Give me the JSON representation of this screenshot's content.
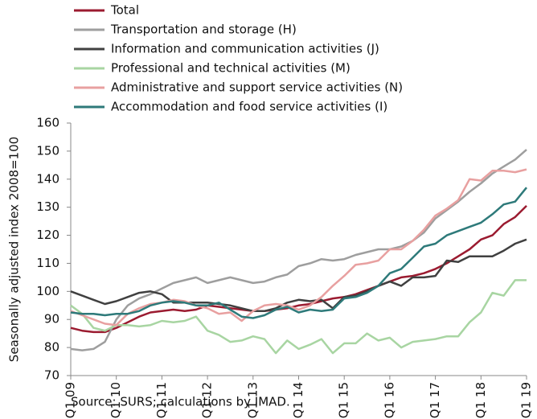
{
  "chart_data": {
    "type": "line",
    "y_label": "Seasonally adjusted index 2008=100",
    "source": "Source:  SURS; calculations by IMAD.",
    "categories": [
      "Q1 09",
      null,
      null,
      null,
      "Q1 10",
      null,
      null,
      null,
      "Q1 11",
      null,
      null,
      null,
      "Q1 12",
      null,
      null,
      null,
      "Q1 13",
      null,
      null,
      null,
      "Q1 14",
      null,
      null,
      null,
      "Q1 15",
      null,
      null,
      null,
      "Q1 16",
      null,
      null,
      null,
      "Q1 17",
      null,
      null,
      null,
      "Q1 18",
      null,
      null,
      null,
      "Q1 19"
    ],
    "ylim": [
      70,
      160
    ],
    "yticks": [
      70,
      80,
      90,
      100,
      110,
      120,
      130,
      140,
      150,
      160
    ],
    "legend": "top-left",
    "series": [
      {
        "name": "Total",
        "color": "#9b1b30",
        "values": [
          87,
          86,
          85.5,
          85.5,
          87,
          89,
          91,
          92.5,
          93,
          93.5,
          93,
          93.5,
          95,
          94.5,
          94,
          93.5,
          93,
          93,
          93.5,
          94,
          95,
          95.5,
          96.5,
          97.5,
          98,
          99,
          100.5,
          102,
          103.5,
          105,
          105.5,
          106.5,
          108,
          110,
          112.5,
          115,
          118.5,
          120,
          124,
          126.5,
          130.5
        ]
      },
      {
        "name": "Transportation and storage (H)",
        "color": "#9e9e9e",
        "values": [
          79.5,
          79,
          79.5,
          82,
          90,
          95,
          97.5,
          99,
          101,
          103,
          104,
          105,
          103,
          104,
          105,
          104,
          103,
          103.5,
          105,
          106,
          109,
          110,
          111.5,
          111,
          111.5,
          113,
          114,
          115,
          115,
          116,
          118,
          121,
          126,
          129,
          132,
          135.5,
          138.5,
          142,
          144.5,
          147,
          150.5
        ]
      },
      {
        "name": "Information and communication activities (J)",
        "color": "#404040",
        "values": [
          100,
          98.5,
          97,
          95.5,
          96.5,
          98,
          99.5,
          100,
          99,
          96,
          96,
          96,
          96,
          95.5,
          95,
          94,
          93,
          93,
          94,
          96,
          97,
          96.5,
          97,
          94,
          98,
          98.5,
          100,
          102,
          103.5,
          102,
          105,
          105,
          105.5,
          111,
          110.5,
          112.5,
          112.5,
          112.5,
          114.5,
          117,
          118.5
        ]
      },
      {
        "name": "Professional and technical activities (M)",
        "color": "#a8d5a2",
        "values": [
          95,
          92,
          87,
          86,
          88,
          88,
          87.5,
          88,
          89.5,
          89,
          89.5,
          91,
          86,
          84.5,
          82,
          82.5,
          84,
          83,
          78,
          82.5,
          79.5,
          81,
          83,
          78,
          81.5,
          81.5,
          85,
          82.5,
          83.5,
          80,
          82,
          82.5,
          83,
          84,
          84,
          89,
          92.5,
          99.5,
          98.5,
          104,
          104
        ]
      },
      {
        "name": "Administrative and support service activities (N)",
        "color": "#e8a0a0",
        "values": [
          93,
          91.5,
          90,
          88.5,
          88,
          92,
          94,
          95.5,
          96,
          97,
          96.5,
          95,
          94,
          92,
          92.5,
          89.5,
          93,
          95,
          95.5,
          95,
          93.5,
          95,
          98,
          102,
          105.5,
          109.5,
          110,
          111,
          115,
          115,
          118,
          122,
          127,
          129.5,
          132.5,
          140,
          139.5,
          143,
          143,
          142.5,
          143.5
        ]
      },
      {
        "name": "Accommodation and food service activities (I)",
        "color": "#2e7a7a",
        "values": [
          92.5,
          92,
          92,
          91.5,
          92,
          92,
          93,
          95,
          96,
          96.5,
          96,
          95,
          95,
          96,
          93.5,
          91,
          90.5,
          91.5,
          93.5,
          94.5,
          92.5,
          93.5,
          93,
          93.5,
          97.5,
          98,
          99.5,
          102,
          106.5,
          108,
          112,
          116,
          117,
          120,
          121.5,
          123,
          124.5,
          127.5,
          131,
          132,
          137
        ]
      }
    ]
  }
}
